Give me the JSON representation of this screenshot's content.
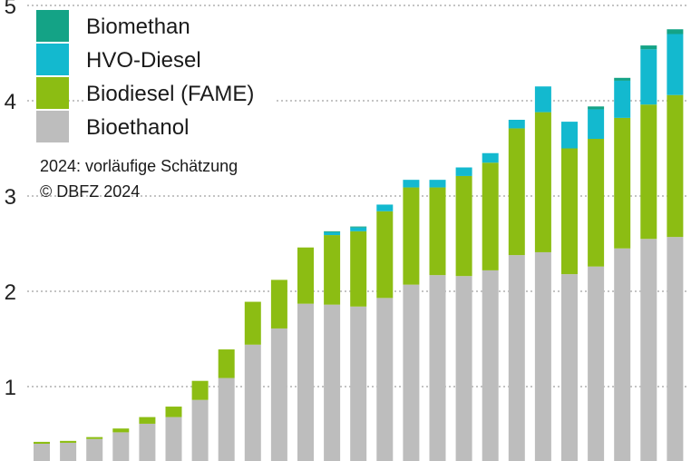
{
  "chart_data": {
    "type": "bar",
    "stacked": true,
    "ylim": [
      0,
      5
    ],
    "yticks": [
      "1",
      "2",
      "3",
      "4",
      "5"
    ],
    "grid": true,
    "legend_position": "top-left",
    "notes": [
      "2024: vorläufige Schätzung",
      "© DBFZ 2024"
    ],
    "series": [
      {
        "name": "Bioethanol",
        "color": "#bdbdbd",
        "values": [
          0.4,
          0.41,
          0.45,
          0.52,
          0.61,
          0.68,
          0.86,
          1.09,
          1.44,
          1.61,
          1.87,
          1.86,
          1.84,
          1.93,
          2.07,
          2.17,
          2.16,
          2.22,
          2.38,
          2.41,
          2.18,
          2.26,
          2.45,
          2.55,
          2.57
        ]
      },
      {
        "name": "Biodiesel (FAME)",
        "color": "#8cbd13",
        "values": [
          0.02,
          0.02,
          0.02,
          0.04,
          0.07,
          0.11,
          0.2,
          0.3,
          0.45,
          0.51,
          0.59,
          0.73,
          0.79,
          0.91,
          1.02,
          0.92,
          1.05,
          1.13,
          1.33,
          1.47,
          1.32,
          1.34,
          1.37,
          1.41,
          1.49
        ]
      },
      {
        "name": "HVO-Diesel",
        "color": "#13b9cf",
        "values": [
          0,
          0,
          0,
          0,
          0,
          0,
          0,
          0,
          0,
          0,
          0,
          0.03,
          0.04,
          0.07,
          0.08,
          0.08,
          0.09,
          0.1,
          0.09,
          0.27,
          0.28,
          0.31,
          0.39,
          0.58,
          0.64
        ]
      },
      {
        "name": "Biomethan",
        "color": "#14a386",
        "values": [
          0,
          0,
          0,
          0,
          0,
          0,
          0,
          0,
          0,
          0,
          0,
          0.01,
          0.01,
          0,
          0,
          0,
          0,
          0,
          0,
          0,
          0,
          0.03,
          0.03,
          0.04,
          0.05
        ]
      }
    ]
  }
}
